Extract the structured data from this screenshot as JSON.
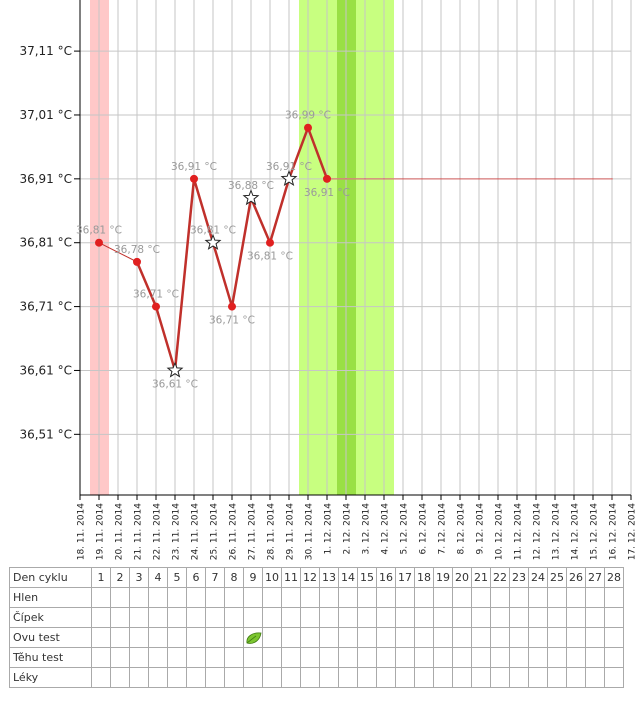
{
  "chart_data": {
    "type": "line",
    "x_dates": [
      "18. 11. 2014",
      "19. 11. 2014",
      "20. 11. 2014",
      "21. 11. 2014",
      "22. 11. 2014",
      "23. 11. 2014",
      "24. 11. 2014",
      "25. 11. 2014",
      "26. 11. 2014",
      "27. 11. 2014",
      "28. 11. 2014",
      "29. 11. 2014",
      "30. 11. 2014",
      "1. 12. 2014",
      "2. 12. 2014",
      "3. 12. 2014",
      "4. 12. 2014",
      "5. 12. 2014",
      "6. 12. 2014",
      "7. 12. 2014",
      "8. 12. 2014",
      "9. 12. 2014",
      "10. 12. 2014",
      "11. 12. 2014",
      "12. 12. 2014",
      "13. 12. 2014",
      "14. 12. 2014",
      "15. 12. 2014",
      "16. 12. 2014",
      "17. 12. 2014"
    ],
    "y_ticks": [
      "36,51 °C",
      "36,61 °C",
      "36,71 °C",
      "36,81 °C",
      "36,91 °C",
      "37,01 °C",
      "37,11 °C"
    ],
    "ylim": [
      36.415,
      37.19
    ],
    "series": [
      {
        "values": [
          36.81,
          null,
          36.78,
          36.71,
          36.61,
          36.91,
          36.81,
          36.71,
          36.88,
          36.81,
          36.91,
          36.99,
          36.91
        ],
        "labels": [
          "36,81 °C",
          "",
          "36,78 °C",
          "36,71 °C",
          "36,61 °C",
          "36,91 °C",
          "36,81 °C",
          "36,71 °C",
          "36,88 °C",
          "36,81 °C",
          "36,91 °C",
          "36,99 °C",
          "36,91 °C"
        ],
        "markers": [
          "dot",
          "",
          "dot",
          "dot",
          "star",
          "dot",
          "star",
          "dot",
          "star",
          "dot",
          "star",
          "dot",
          "dot"
        ],
        "start_date": "19. 11. 2014",
        "color": "#c0302b"
      }
    ],
    "projection": {
      "value": 36.91,
      "from_date": "1. 12. 2014",
      "to_date": "16. 12. 2014",
      "color": "#d97a7a"
    },
    "period_band": {
      "dates": [
        "19. 11. 2014"
      ],
      "color": "#ffc8c8"
    },
    "fertile_band": {
      "from_date": "30. 11. 2014",
      "to_date": "4. 12. 2014",
      "color": "#c8ff80"
    },
    "ovulation_band": {
      "dates": [
        "2. 12. 2014"
      ],
      "color": "#99e045"
    },
    "grid": true
  },
  "table": {
    "rows": [
      "Den cyklu",
      "Hlen",
      "Čípek",
      "Ovu test",
      "Těhu test",
      "Léky"
    ],
    "days": [
      "1",
      "2",
      "3",
      "4",
      "5",
      "6",
      "7",
      "8",
      "9",
      "10",
      "11",
      "12",
      "13",
      "14",
      "15",
      "16",
      "17",
      "18",
      "19",
      "20",
      "21",
      "22",
      "23",
      "24",
      "25",
      "26",
      "27",
      "28"
    ],
    "ovu_test_leaf_day": "9",
    "leaf_color": "#7cc630"
  }
}
